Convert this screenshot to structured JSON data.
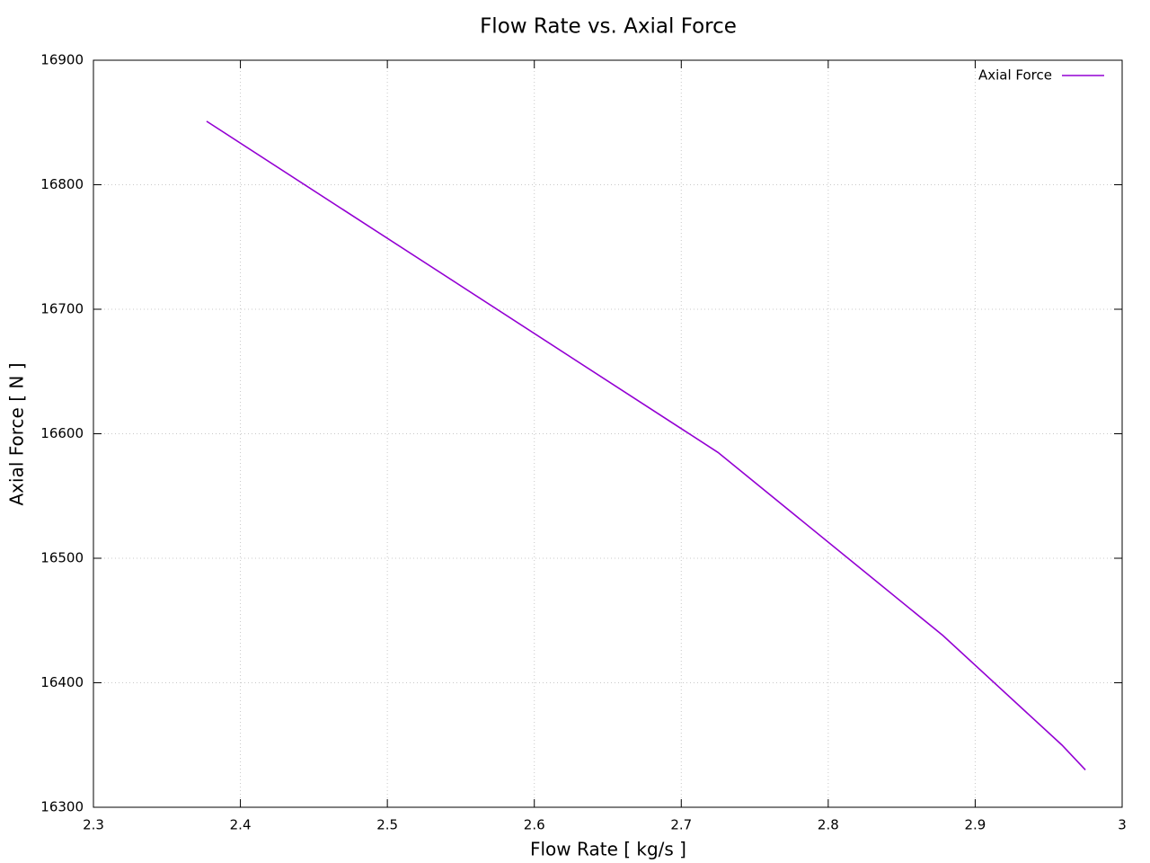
{
  "chart_data": {
    "type": "line",
    "title": "Flow Rate vs. Axial Force",
    "x_label": "Flow Rate [ kg/s ]",
    "y_label": "Axial Force [ N ]",
    "x": [
      2.377,
      2.725,
      2.878,
      2.959,
      2.975
    ],
    "series": [
      {
        "name": "Axial Force",
        "color": "#9400d3",
        "values": [
          16851,
          16585,
          16438,
          16350,
          16330
        ]
      }
    ],
    "xlim": [
      2.3,
      3
    ],
    "xticks": [
      2.3,
      2.4,
      2.5,
      2.6,
      2.7,
      2.8,
      2.9,
      3
    ],
    "ylim": [
      16300,
      16900
    ],
    "yticks": [
      16300,
      16400,
      16500,
      16600,
      16700,
      16800,
      16900
    ],
    "grid": true,
    "legend": "top-right"
  }
}
